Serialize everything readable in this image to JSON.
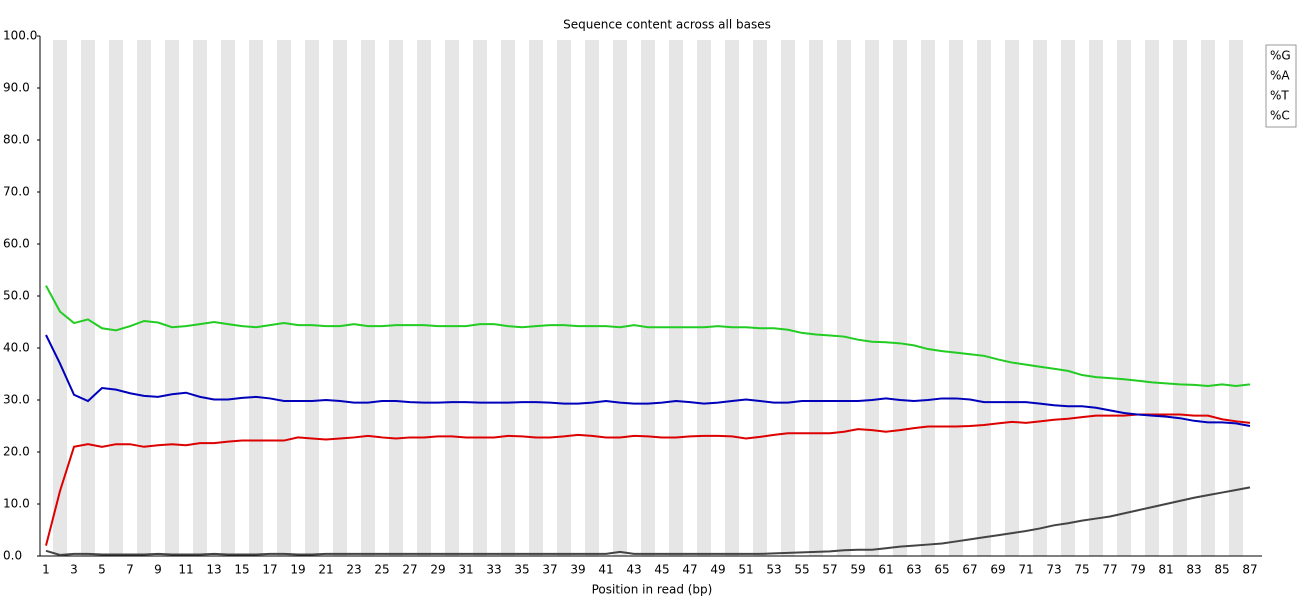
{
  "chart_data": {
    "type": "line",
    "title": "Sequence content across all bases",
    "x_label": "Position in read (bp)",
    "categories": [
      "1",
      null,
      "3",
      null,
      "5",
      null,
      "7",
      null,
      "9",
      null,
      "11",
      null,
      "13",
      null,
      "15",
      null,
      "17",
      null,
      "19",
      null,
      "21",
      null,
      "23",
      null,
      "25",
      null,
      "27",
      null,
      "29",
      null,
      "31",
      null,
      "33",
      null,
      "35",
      null,
      "37",
      null,
      "39",
      null,
      "41",
      null,
      "43",
      null,
      "45",
      null,
      "47",
      null,
      "49",
      null,
      "51",
      null,
      "53",
      null,
      "55",
      null,
      "57",
      null,
      "59",
      null,
      "61",
      null,
      "63",
      null,
      "65",
      null,
      "67",
      null,
      "69",
      null,
      "71",
      null,
      "73",
      null,
      "75",
      null,
      "77",
      null,
      "79",
      null,
      "81",
      null,
      "83",
      null,
      "85",
      null,
      "87"
    ],
    "series": [
      {
        "name": "%G",
        "color": "#dd0000",
        "values": [
          2,
          12.5,
          21,
          21.5,
          21,
          21.5,
          21.5,
          21,
          21.3,
          21.5,
          21.3,
          21.7,
          21.7,
          22,
          22.2,
          22.2,
          22.2,
          22.2,
          22.8,
          22.6,
          22.4,
          22.6,
          22.8,
          23.1,
          22.8,
          22.6,
          22.8,
          22.8,
          23,
          23,
          22.8,
          22.8,
          22.8,
          23.1,
          23,
          22.8,
          22.8,
          23,
          23.3,
          23.1,
          22.8,
          22.8,
          23.1,
          23,
          22.8,
          22.8,
          23,
          23.1,
          23.1,
          23,
          22.6,
          22.9,
          23.3,
          23.6,
          23.6,
          23.6,
          23.6,
          23.9,
          24.4,
          24.2,
          23.9,
          24.2,
          24.6,
          24.9,
          24.9,
          24.9,
          25,
          25.2,
          25.5,
          25.8,
          25.6,
          25.9,
          26.2,
          26.4,
          26.7,
          27,
          27,
          27,
          27.2,
          27.2,
          27.2,
          27.2,
          27,
          27,
          26.3,
          25.9,
          25.6
        ]
      },
      {
        "name": "%A",
        "color": "#0000bb",
        "values": [
          42.5,
          37,
          31,
          29.8,
          32.3,
          32,
          31.3,
          30.8,
          30.6,
          31.1,
          31.4,
          30.6,
          30.1,
          30.1,
          30.4,
          30.6,
          30.3,
          29.8,
          29.8,
          29.8,
          30,
          29.8,
          29.5,
          29.5,
          29.8,
          29.8,
          29.6,
          29.5,
          29.5,
          29.6,
          29.6,
          29.5,
          29.5,
          29.5,
          29.6,
          29.6,
          29.5,
          29.3,
          29.3,
          29.5,
          29.8,
          29.5,
          29.3,
          29.3,
          29.5,
          29.8,
          29.6,
          29.3,
          29.5,
          29.8,
          30.1,
          29.8,
          29.5,
          29.5,
          29.8,
          29.8,
          29.8,
          29.8,
          29.8,
          30,
          30.3,
          30,
          29.8,
          30,
          30.3,
          30.3,
          30.1,
          29.6,
          29.6,
          29.6,
          29.6,
          29.3,
          29,
          28.8,
          28.8,
          28.5,
          28,
          27.5,
          27.2,
          27,
          26.8,
          26.5,
          26,
          25.7,
          25.7,
          25.5,
          25
        ]
      },
      {
        "name": "%T",
        "color": "#22cc22",
        "values": [
          52,
          47,
          44.8,
          45.5,
          43.8,
          43.4,
          44.2,
          45.2,
          44.9,
          44,
          44.2,
          44.6,
          45,
          44.6,
          44.2,
          44,
          44.4,
          44.8,
          44.4,
          44.4,
          44.2,
          44.2,
          44.6,
          44.2,
          44.2,
          44.4,
          44.4,
          44.4,
          44.2,
          44.2,
          44.2,
          44.6,
          44.6,
          44.2,
          44,
          44.2,
          44.4,
          44.4,
          44.2,
          44.2,
          44.2,
          44,
          44.4,
          44,
          44,
          44,
          44,
          44,
          44.2,
          44,
          44,
          43.8,
          43.8,
          43.5,
          42.9,
          42.6,
          42.4,
          42.2,
          41.6,
          41.2,
          41.1,
          40.9,
          40.5,
          39.8,
          39.4,
          39.1,
          38.8,
          38.5,
          37.8,
          37.2,
          36.8,
          36.4,
          36,
          35.6,
          34.8,
          34.4,
          34.2,
          34,
          33.7,
          33.4,
          33.2,
          33,
          32.9,
          32.7,
          33,
          32.7,
          33
        ]
      },
      {
        "name": "%C",
        "color": "#444444",
        "values": [
          1,
          0.2,
          0.4,
          0.4,
          0.3,
          0.3,
          0.3,
          0.3,
          0.4,
          0.3,
          0.3,
          0.3,
          0.4,
          0.3,
          0.3,
          0.3,
          0.4,
          0.4,
          0.3,
          0.3,
          0.4,
          0.4,
          0.4,
          0.4,
          0.4,
          0.4,
          0.4,
          0.4,
          0.4,
          0.4,
          0.4,
          0.4,
          0.4,
          0.4,
          0.4,
          0.4,
          0.4,
          0.4,
          0.4,
          0.4,
          0.4,
          0.8,
          0.4,
          0.4,
          0.4,
          0.4,
          0.4,
          0.4,
          0.4,
          0.4,
          0.4,
          0.4,
          0.5,
          0.6,
          0.7,
          0.8,
          0.9,
          1.1,
          1.2,
          1.2,
          1.5,
          1.8,
          2,
          2.2,
          2.4,
          2.8,
          3.2,
          3.6,
          4,
          4.4,
          4.8,
          5.3,
          5.9,
          6.3,
          6.8,
          7.2,
          7.6,
          8.2,
          8.8,
          9.4,
          10,
          10.6,
          11.2,
          11.7,
          12.2,
          12.7,
          13.2
        ]
      }
    ],
    "ylim": [
      0,
      100
    ],
    "yticks": [
      {
        "value": 0,
        "label": "0.0"
      },
      {
        "value": 10,
        "label": "10.0"
      },
      {
        "value": 20,
        "label": "20.0"
      },
      {
        "value": 30,
        "label": "30.0"
      },
      {
        "value": 40,
        "label": "40.0"
      },
      {
        "value": 50,
        "label": "50.0"
      },
      {
        "value": 60,
        "label": "60.0"
      },
      {
        "value": 70,
        "label": "70.0"
      },
      {
        "value": 80,
        "label": "80.0"
      },
      {
        "value": 90,
        "label": "90.0"
      },
      {
        "value": 100,
        "label": "100.0"
      }
    ],
    "legend": "top-right"
  }
}
